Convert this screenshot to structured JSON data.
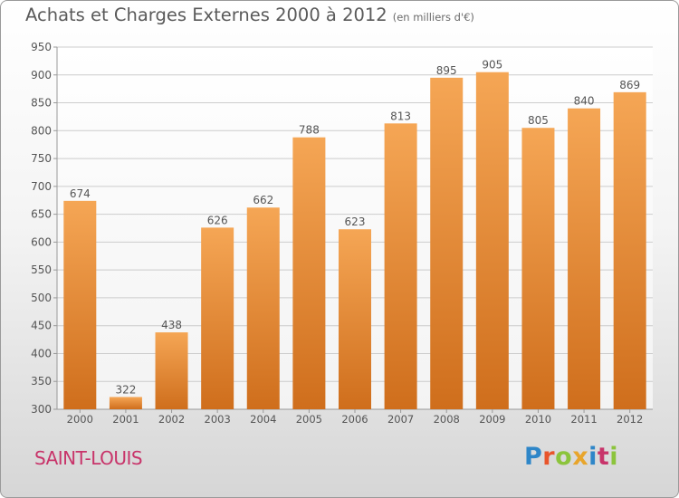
{
  "title": "Achats et Charges Externes 2000 à 2012",
  "unit": "(en milliers d'€)",
  "commune": "SAINT-LOUIS",
  "logo": "Proxiti",
  "colors": {
    "bar_top": "#f5a655",
    "bar_bottom": "#cf6e1c",
    "text": "#555555",
    "grid": "#cccccc"
  },
  "chart_data": {
    "type": "bar",
    "categories": [
      "2000",
      "2001",
      "2002",
      "2003",
      "2004",
      "2005",
      "2006",
      "2007",
      "2008",
      "2009",
      "2010",
      "2011",
      "2012"
    ],
    "values": [
      674,
      322,
      438,
      626,
      662,
      788,
      623,
      813,
      895,
      905,
      805,
      840,
      869
    ],
    "ylim": [
      300,
      950
    ],
    "yticks": [
      300,
      350,
      400,
      450,
      500,
      550,
      600,
      650,
      700,
      750,
      800,
      850,
      900,
      950
    ],
    "grid": true,
    "data_labels": true
  }
}
